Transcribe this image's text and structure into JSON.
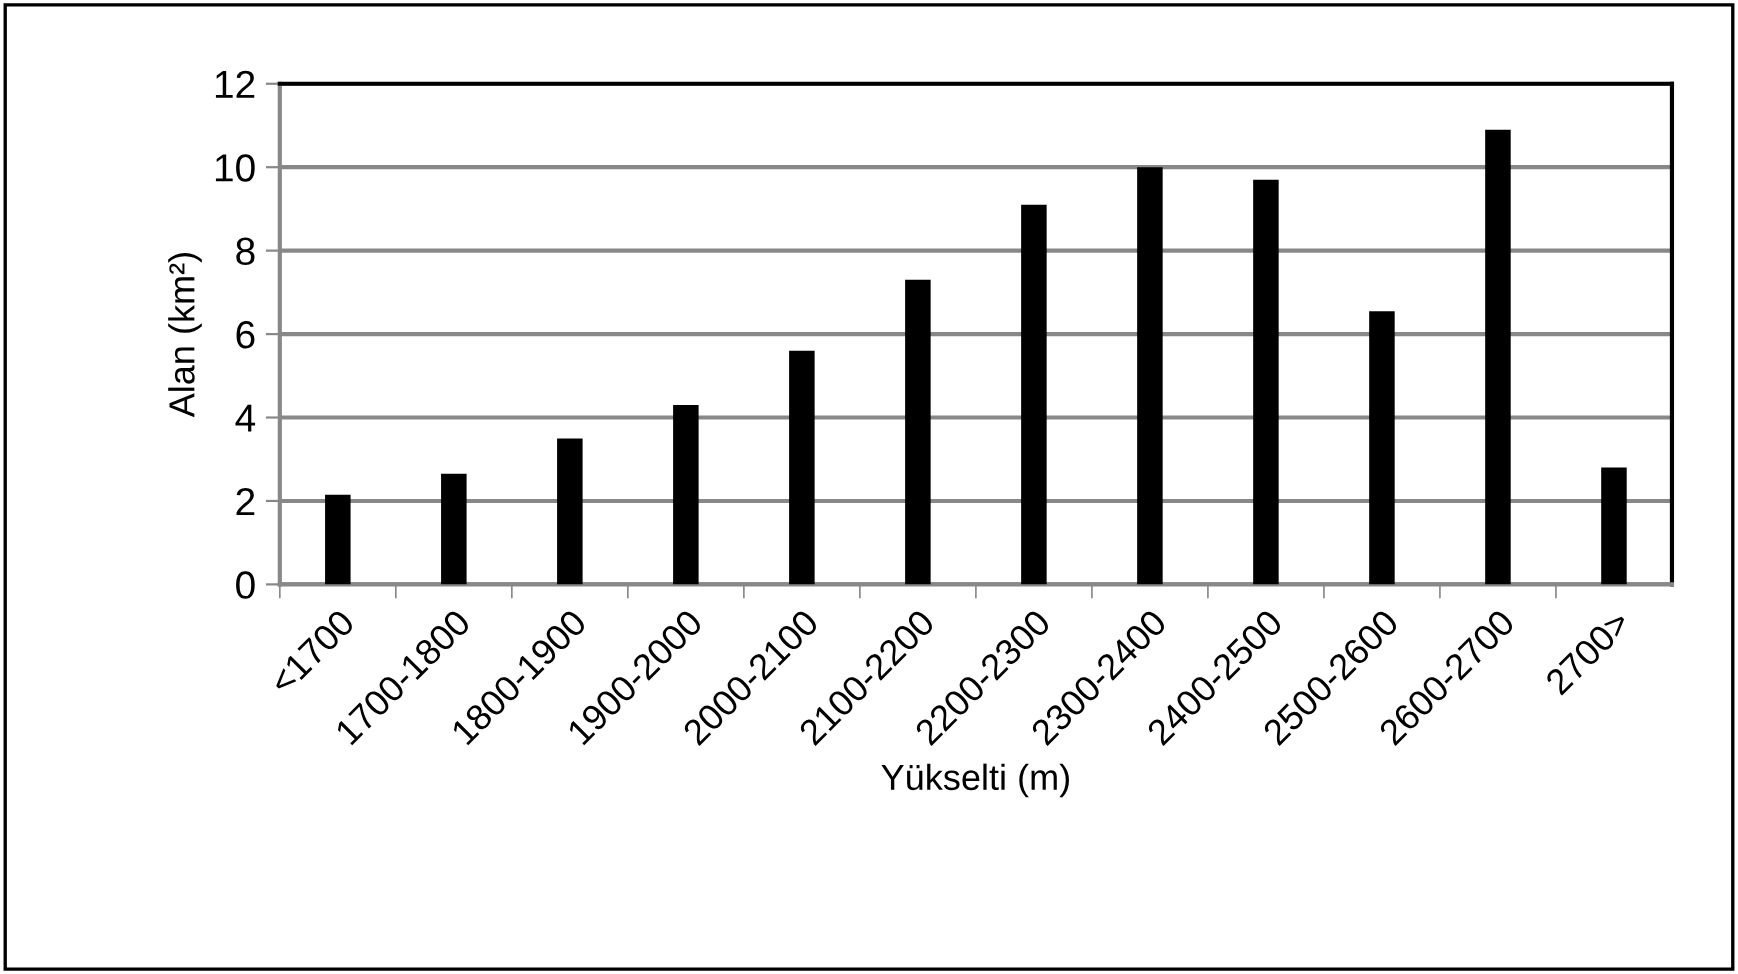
{
  "chart_data": {
    "type": "bar",
    "xlabel": "Yükselti (m)",
    "ylabel": "Alan (km²)",
    "categories": [
      "<1700",
      "1700-1800",
      "1800-1900",
      "1900-2000",
      "2000-2100",
      "2100-2200",
      "2200-2300",
      "2300-2400",
      "2400-2500",
      "2500-2600",
      "2600-2700",
      "2700>"
    ],
    "values": [
      2.15,
      2.65,
      3.5,
      4.3,
      5.6,
      7.3,
      9.1,
      10.0,
      9.7,
      6.55,
      10.9,
      2.8
    ],
    "color": "#000000",
    "ylim": [
      0,
      12
    ],
    "yticks": [
      0,
      2,
      4,
      6,
      8,
      10,
      12
    ],
    "grid": "y",
    "legend": false
  }
}
